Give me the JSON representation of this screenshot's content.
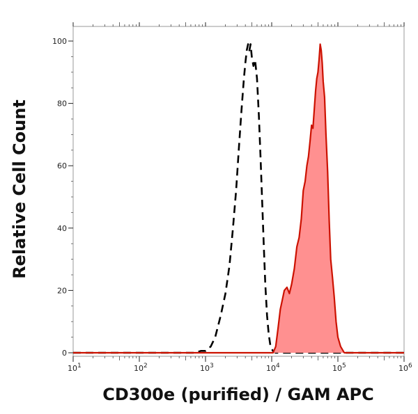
{
  "chart_data": {
    "type": "area",
    "xlabel": "CD300e (purified) / GAM APC",
    "ylabel": "Relative Cell Count",
    "x_scale": "log",
    "xlim": [
      10,
      1000000
    ],
    "ylim": [
      0,
      100
    ],
    "x_ticks": [
      {
        "value": 10,
        "base": "10",
        "exp": "1"
      },
      {
        "value": 100,
        "base": "10",
        "exp": "2"
      },
      {
        "value": 1000,
        "base": "10",
        "exp": "3"
      },
      {
        "value": 10000,
        "base": "10",
        "exp": "4"
      },
      {
        "value": 100000,
        "base": "10",
        "exp": "5"
      },
      {
        "value": 1000000,
        "base": "10",
        "exp": "6"
      }
    ],
    "y_ticks": [
      0,
      20,
      40,
      60,
      80,
      100
    ],
    "grid": false,
    "series": [
      {
        "style": "dashed",
        "color": "#000000",
        "fill": "none",
        "points": [
          [
            10,
            0
          ],
          [
            700,
            0
          ],
          [
            850,
            0.6
          ],
          [
            1000,
            0.6
          ],
          [
            1200,
            2
          ],
          [
            1400,
            5
          ],
          [
            1700,
            12
          ],
          [
            2000,
            19
          ],
          [
            2300,
            28
          ],
          [
            2600,
            40
          ],
          [
            2900,
            52
          ],
          [
            3200,
            66
          ],
          [
            3500,
            78
          ],
          [
            3800,
            88
          ],
          [
            4000,
            93
          ],
          [
            4200,
            97
          ],
          [
            4400,
            99
          ],
          [
            4600,
            97
          ],
          [
            4800,
            99
          ],
          [
            5000,
            95
          ],
          [
            5300,
            92
          ],
          [
            5600,
            94
          ],
          [
            6000,
            88
          ],
          [
            6400,
            76
          ],
          [
            6800,
            62
          ],
          [
            7200,
            48
          ],
          [
            7600,
            34
          ],
          [
            8000,
            22
          ],
          [
            8500,
            12
          ],
          [
            9000,
            6
          ],
          [
            9600,
            2
          ],
          [
            10500,
            0.5
          ],
          [
            11500,
            0
          ],
          [
            1000000,
            0
          ]
        ]
      },
      {
        "style": "solid",
        "color": "#cc1100",
        "fill": "#ff9090",
        "points": [
          [
            10,
            0
          ],
          [
            10500,
            0
          ],
          [
            11500,
            2
          ],
          [
            12500,
            8
          ],
          [
            13500,
            14
          ],
          [
            14500,
            17
          ],
          [
            15500,
            20
          ],
          [
            17000,
            21
          ],
          [
            18500,
            19
          ],
          [
            20000,
            22
          ],
          [
            22000,
            27
          ],
          [
            24000,
            34
          ],
          [
            26000,
            37
          ],
          [
            28000,
            43
          ],
          [
            30000,
            52
          ],
          [
            32000,
            55
          ],
          [
            34000,
            60
          ],
          [
            36000,
            63
          ],
          [
            38000,
            68
          ],
          [
            40000,
            73
          ],
          [
            42000,
            72
          ],
          [
            44000,
            78
          ],
          [
            46000,
            84
          ],
          [
            48000,
            88
          ],
          [
            50000,
            90
          ],
          [
            52000,
            94
          ],
          [
            54000,
            99
          ],
          [
            56000,
            97
          ],
          [
            58000,
            93
          ],
          [
            60000,
            87
          ],
          [
            63000,
            82
          ],
          [
            66000,
            70
          ],
          [
            70000,
            58
          ],
          [
            74000,
            42
          ],
          [
            78000,
            30
          ],
          [
            83000,
            24
          ],
          [
            88000,
            18
          ],
          [
            94000,
            10
          ],
          [
            100000,
            5
          ],
          [
            110000,
            2
          ],
          [
            125000,
            0
          ],
          [
            1000000,
            0
          ]
        ]
      }
    ]
  }
}
